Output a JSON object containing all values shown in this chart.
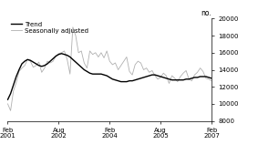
{
  "ylabel_right": "no.",
  "ylim": [
    8000,
    20000
  ],
  "yticks": [
    8000,
    10000,
    12000,
    14000,
    16000,
    18000,
    20000
  ],
  "xtick_labels": [
    "Feb\n2001",
    "Aug\n2002",
    "Feb\n2004",
    "Aug\n2005",
    "Feb\n2007"
  ],
  "xtick_positions": [
    0,
    18,
    36,
    54,
    72
  ],
  "legend_entries": [
    "Trend",
    "Seasonally adjusted"
  ],
  "trend_color": "#000000",
  "seasonal_color": "#b0b0b0",
  "background_color": "#ffffff",
  "trend_lw": 1.0,
  "seasonal_lw": 0.6,
  "trend_data": [
    10500,
    11200,
    12200,
    13200,
    14000,
    14700,
    15000,
    15200,
    15100,
    14900,
    14700,
    14500,
    14400,
    14500,
    14700,
    15000,
    15300,
    15600,
    15800,
    15900,
    15800,
    15700,
    15500,
    15200,
    14900,
    14600,
    14300,
    14000,
    13800,
    13600,
    13500,
    13500,
    13500,
    13500,
    13400,
    13300,
    13100,
    12900,
    12800,
    12700,
    12600,
    12600,
    12600,
    12700,
    12700,
    12800,
    12900,
    13000,
    13100,
    13200,
    13300,
    13400,
    13400,
    13300,
    13200,
    13100,
    13000,
    12900,
    12800,
    12800,
    12800,
    12800,
    12800,
    12900,
    12900,
    13000,
    13100,
    13100,
    13200,
    13200,
    13200,
    13100,
    13000
  ],
  "seasonal_data": [
    10000,
    9200,
    11500,
    12500,
    13800,
    14200,
    14500,
    15200,
    15000,
    14300,
    14500,
    14900,
    13700,
    14200,
    15000,
    14800,
    15000,
    15600,
    15900,
    16000,
    16200,
    15200,
    13500,
    19000,
    18000,
    16000,
    16200,
    14800,
    14200,
    16200,
    15800,
    16000,
    15500,
    16000,
    15400,
    16200,
    15000,
    14600,
    14800,
    14000,
    14500,
    15000,
    15500,
    13800,
    13400,
    14600,
    15000,
    14800,
    14000,
    14200,
    13700,
    13900,
    13300,
    12900,
    13100,
    13600,
    13300,
    12400,
    13300,
    13000,
    12600,
    13200,
    13600,
    13900,
    12900,
    12700,
    13400,
    13700,
    14200,
    13800,
    13000,
    12900,
    12700
  ]
}
